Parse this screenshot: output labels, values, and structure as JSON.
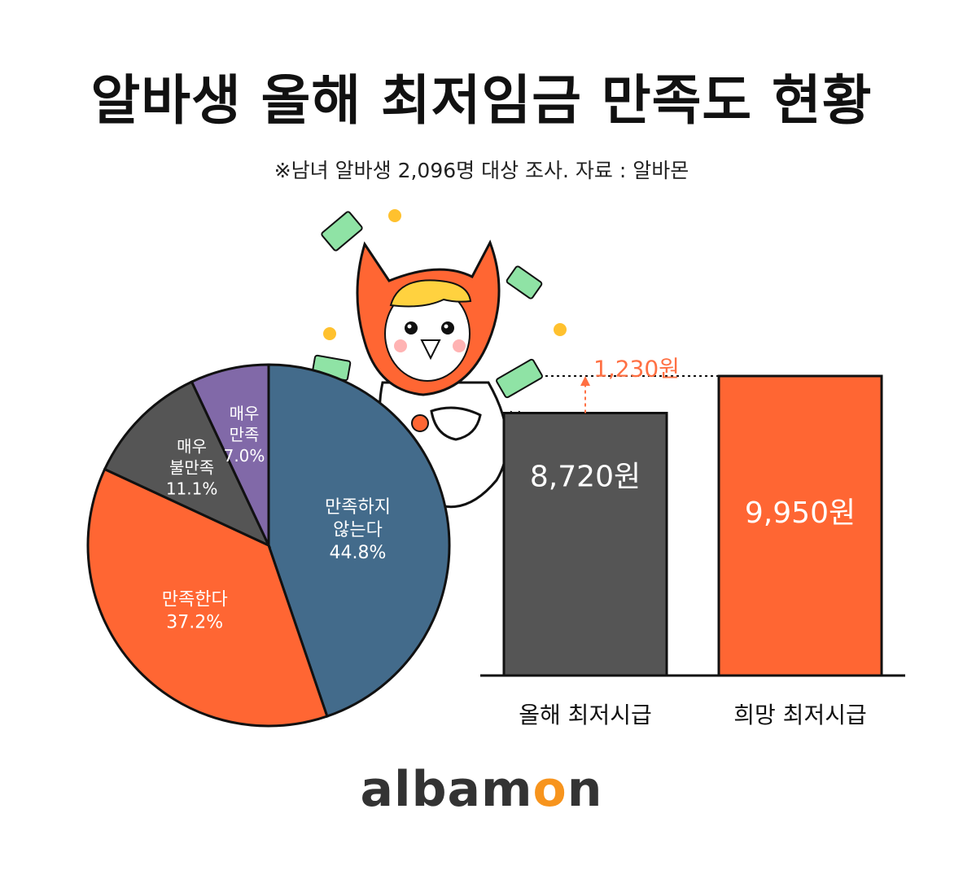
{
  "title": "알바생 올해 최저임금 만족도 현황",
  "subtitle": "※남녀 알바생 2,096명 대상 조사. 자료 : 알바몬",
  "brand": {
    "prefix": "albam",
    "o": "o",
    "suffix": "n"
  },
  "colors": {
    "orange": "#ff6633",
    "steel_blue": "#436b8b",
    "dark_gray": "#555555",
    "purple": "#8169a8",
    "outline": "#111111",
    "arrow_orange": "#ff7043"
  },
  "chart_data": [
    {
      "type": "pie",
      "slices": [
        {
          "label_lines": [
            "만족하지",
            "않는다"
          ],
          "value": 44.8,
          "value_text": "44.8%",
          "color": "#436b8b"
        },
        {
          "label_lines": [
            "만족한다"
          ],
          "value": 37.2,
          "value_text": "37.2%",
          "color": "#ff6633"
        },
        {
          "label_lines": [
            "매우",
            "불만족"
          ],
          "value": 11.1,
          "value_text": "11.1%",
          "color": "#555555"
        },
        {
          "label_lines": [
            "매우",
            "만족"
          ],
          "value": 7.0,
          "value_text": "7.0%",
          "color": "#8169a8"
        }
      ]
    },
    {
      "type": "bar",
      "categories": [
        "올해 최저시급",
        "희망 최저시급"
      ],
      "values": [
        8720,
        9950
      ],
      "value_labels": [
        "8,720원",
        "9,950원"
      ],
      "colors": [
        "#555555",
        "#ff6633"
      ],
      "difference": {
        "value": 1230,
        "label": "1,230원"
      }
    }
  ]
}
